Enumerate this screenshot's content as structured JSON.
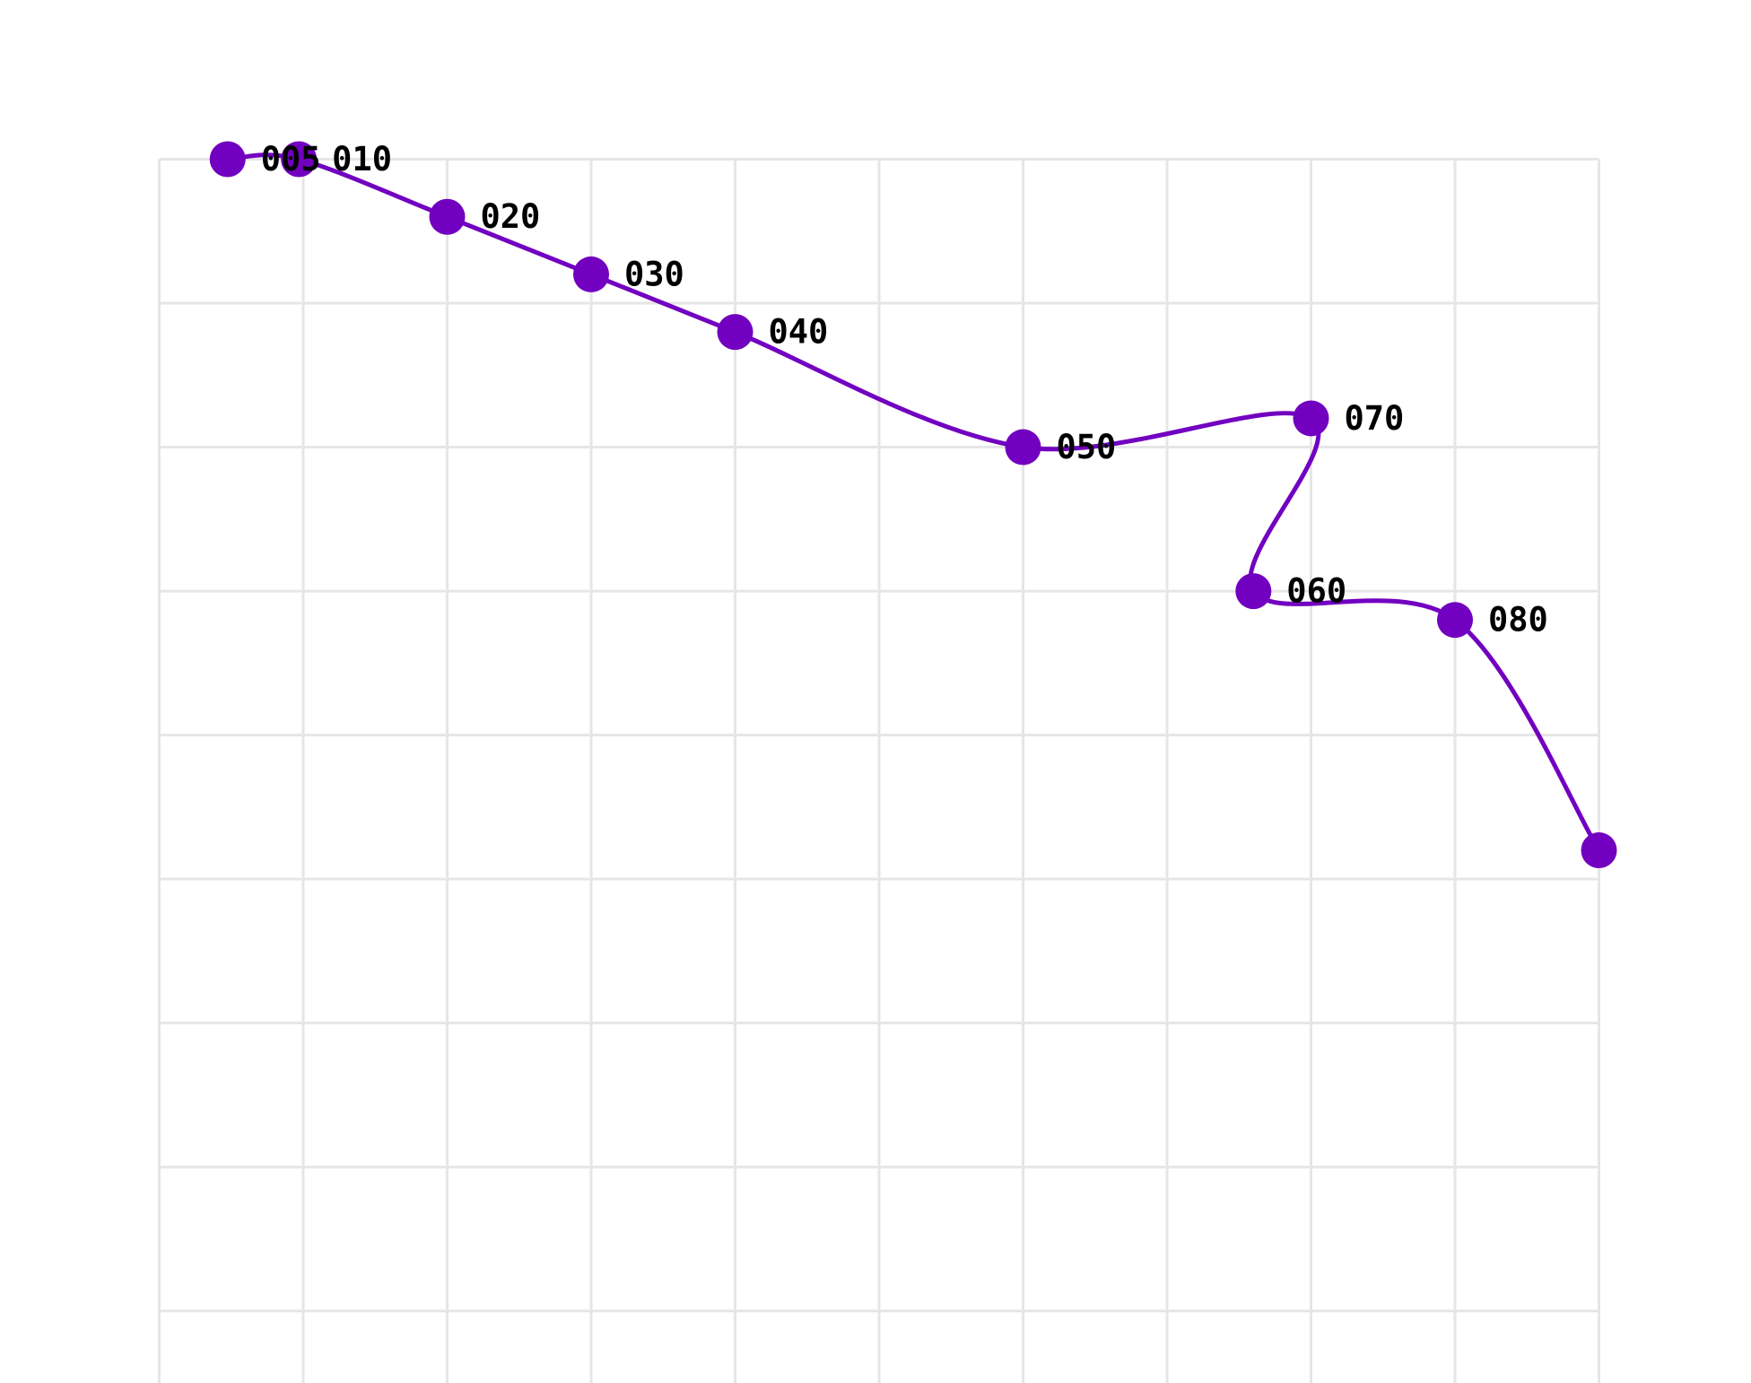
{
  "chart_data": {
    "type": "line",
    "x": [
      0.475,
      0.97,
      2.0,
      3.0,
      4.0,
      6.0,
      8.0,
      7.6,
      9.0,
      10.0
    ],
    "series": [
      {
        "color": "#7200c0",
        "values": [
          0,
          0,
          -0.4,
          -0.8,
          -1.2,
          -2.0,
          -1.8,
          -3.0,
          -3.2,
          -4.8
        ],
        "point_labels": [
          "005",
          "010",
          "020",
          "030",
          "040",
          "050",
          "070",
          "060",
          "080",
          null
        ]
      }
    ],
    "xlim": [
      0,
      10
    ],
    "xticks": [
      0,
      1,
      2,
      3,
      4,
      5,
      6,
      7,
      8,
      9,
      10
    ],
    "ylim": [
      -8.5,
      0
    ],
    "yticks": [
      0,
      -1,
      -2,
      -3,
      -4,
      -5,
      -6,
      -7,
      -8
    ],
    "grid": true
  }
}
